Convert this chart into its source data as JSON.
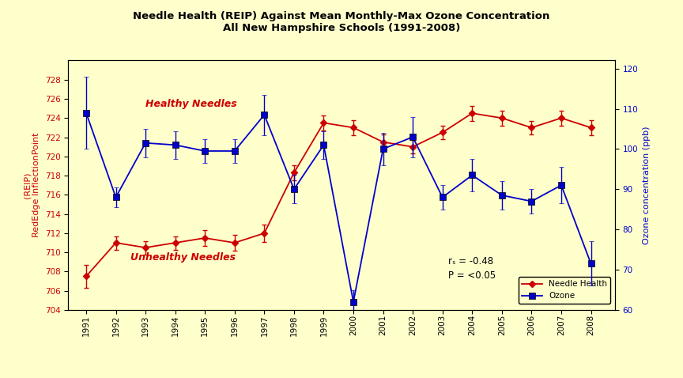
{
  "title_line1": "Needle Health (REIP) Against Mean Monthly-Max Ozone Concentration",
  "title_line2": "All New Hampshire Schools (1991-2008)",
  "years": [
    1991,
    1992,
    1993,
    1994,
    1995,
    1996,
    1997,
    1998,
    1999,
    2000,
    2001,
    2002,
    2003,
    2004,
    2005,
    2006,
    2007,
    2008
  ],
  "needle_health": [
    707.5,
    711.0,
    710.5,
    711.0,
    711.5,
    711.0,
    712.0,
    718.3,
    723.5,
    723.0,
    721.5,
    721.0,
    722.5,
    724.5,
    724.0,
    723.0,
    724.0,
    723.0
  ],
  "needle_health_err": [
    1.2,
    0.7,
    0.7,
    0.7,
    0.8,
    0.8,
    0.9,
    0.8,
    0.8,
    0.8,
    0.8,
    0.7,
    0.7,
    0.8,
    0.8,
    0.7,
    0.8,
    0.8
  ],
  "ozone": [
    109.0,
    88.0,
    101.5,
    101.0,
    99.5,
    99.5,
    108.5,
    90.0,
    101.0,
    62.0,
    100.0,
    103.0,
    88.0,
    93.5,
    88.5,
    87.0,
    91.0,
    71.5
  ],
  "ozone_err": [
    9.0,
    2.5,
    3.5,
    3.5,
    3.0,
    3.0,
    5.0,
    3.5,
    3.5,
    3.0,
    4.0,
    5.0,
    3.0,
    4.0,
    3.5,
    3.0,
    4.5,
    5.5
  ],
  "ylabel_left": "(REIP)\nRedEdge InflectionPoint",
  "ylabel_right": "Ozone concentration (ppb)",
  "ylim_left": [
    704,
    730
  ],
  "ylim_right": [
    60,
    122
  ],
  "yticks_left": [
    704,
    706,
    708,
    710,
    712,
    714,
    716,
    718,
    720,
    722,
    724,
    726,
    728
  ],
  "yticks_right": [
    60,
    70,
    80,
    90,
    100,
    110,
    120
  ],
  "needle_color": "#cc0000",
  "ozone_color": "#0000cc",
  "background_color": "#ffffcc",
  "annotation_rs": "rₛ = -0.48",
  "annotation_p": "P = <0.05",
  "label_healthy": "Healthy Needles",
  "label_unhealthy": "Unhealthy Needles",
  "legend_needle": "Needle Health",
  "legend_ozone": "Ozone",
  "xlim": [
    1990.4,
    2008.8
  ]
}
